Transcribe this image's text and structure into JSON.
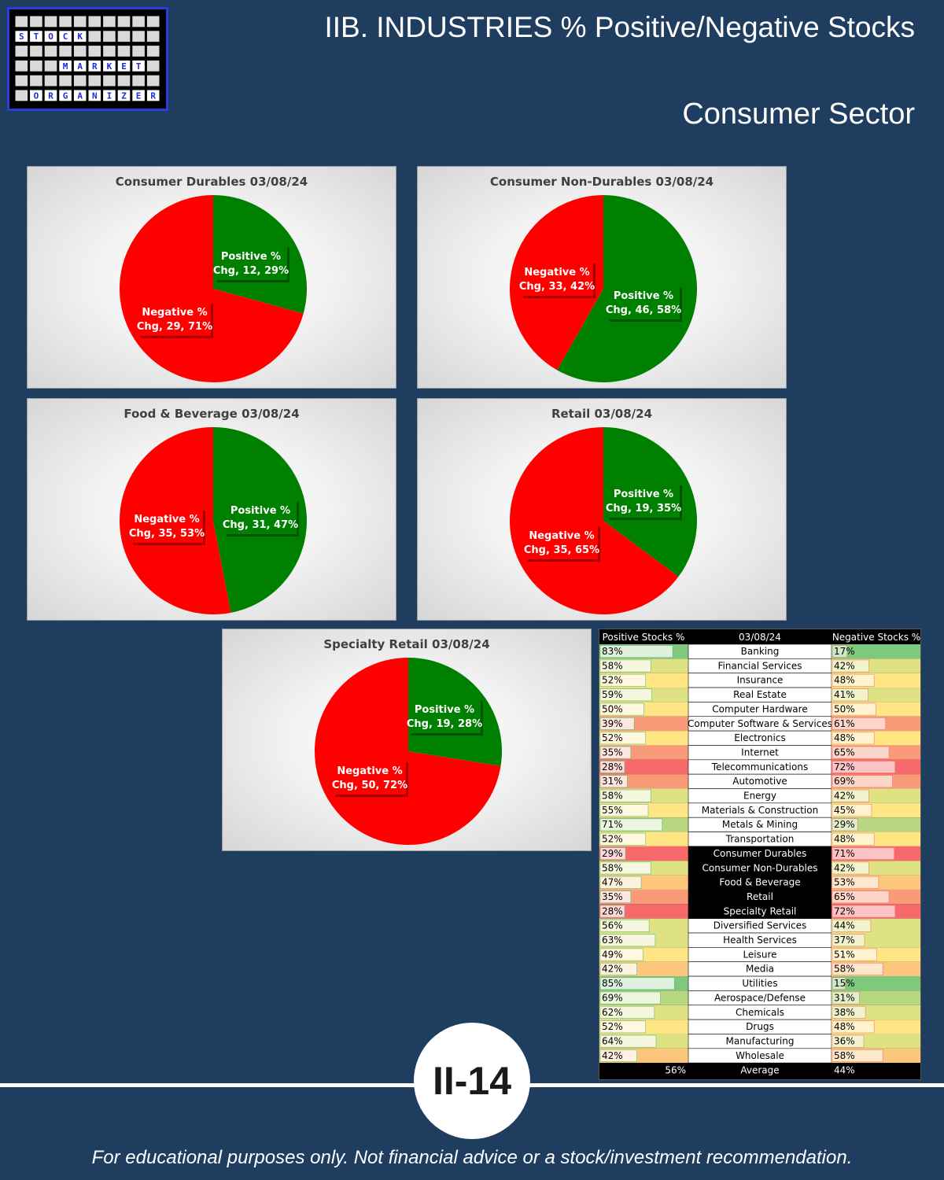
{
  "header": {
    "title": "IIB. INDUSTRIES % Positive/Negative Stocks",
    "subtitle": "Consumer Sector"
  },
  "logo": {
    "words": [
      "STOCK",
      "MARKET",
      "ORGANIZER"
    ]
  },
  "chart_data": [
    {
      "type": "pie",
      "title": "Consumer Durables 03/08/24",
      "slices": [
        {
          "name": "Positive % Chg",
          "value": 12,
          "percent": "29%",
          "color": "#008000"
        },
        {
          "name": "Negative % Chg",
          "value": 29,
          "percent": "71%",
          "color": "#ff0000"
        }
      ]
    },
    {
      "type": "pie",
      "title": "Consumer Non-Durables 03/08/24",
      "slices": [
        {
          "name": "Positive % Chg",
          "value": 46,
          "percent": "58%",
          "color": "#008000"
        },
        {
          "name": "Negative % Chg",
          "value": 33,
          "percent": "42%",
          "color": "#ff0000"
        }
      ]
    },
    {
      "type": "pie",
      "title": "Food & Beverage 03/08/24",
      "slices": [
        {
          "name": "Positive % Chg",
          "value": 31,
          "percent": "47%",
          "color": "#008000"
        },
        {
          "name": "Negative % Chg",
          "value": 35,
          "percent": "53%",
          "color": "#ff0000"
        }
      ]
    },
    {
      "type": "pie",
      "title": "Retail 03/08/24",
      "slices": [
        {
          "name": "Positive % Chg",
          "value": 19,
          "percent": "35%",
          "color": "#008000"
        },
        {
          "name": "Negative % Chg",
          "value": 35,
          "percent": "65%",
          "color": "#ff0000"
        }
      ]
    },
    {
      "type": "pie",
      "title": "Specialty Retail 03/08/24",
      "slices": [
        {
          "name": "Positive % Chg",
          "value": 19,
          "percent": "28%",
          "color": "#008000"
        },
        {
          "name": "Negative % Chg",
          "value": 50,
          "percent": "72%",
          "color": "#ff0000"
        }
      ]
    },
    {
      "type": "table",
      "columns": [
        "Positive Stocks %",
        "03/08/24",
        "Negative Stocks %"
      ],
      "highlighted": [
        "Consumer Durables",
        "Consumer Non-Durables",
        "Food & Beverage",
        "Retail",
        "Specialty Retail"
      ],
      "rows": [
        {
          "industry": "Banking",
          "pos": 83,
          "neg": 17
        },
        {
          "industry": "Financial Services",
          "pos": 58,
          "neg": 42
        },
        {
          "industry": "Insurance",
          "pos": 52,
          "neg": 48
        },
        {
          "industry": "Real Estate",
          "pos": 59,
          "neg": 41
        },
        {
          "industry": "Computer Hardware",
          "pos": 50,
          "neg": 50
        },
        {
          "industry": "Computer Software & Services",
          "pos": 39,
          "neg": 61
        },
        {
          "industry": "Electronics",
          "pos": 52,
          "neg": 48
        },
        {
          "industry": "Internet",
          "pos": 35,
          "neg": 65
        },
        {
          "industry": "Telecommunications",
          "pos": 28,
          "neg": 72
        },
        {
          "industry": "Automotive",
          "pos": 31,
          "neg": 69
        },
        {
          "industry": "Energy",
          "pos": 58,
          "neg": 42
        },
        {
          "industry": "Materials & Construction",
          "pos": 55,
          "neg": 45
        },
        {
          "industry": "Metals & Mining",
          "pos": 71,
          "neg": 29
        },
        {
          "industry": "Transportation",
          "pos": 52,
          "neg": 48
        },
        {
          "industry": "Consumer Durables",
          "pos": 29,
          "neg": 71
        },
        {
          "industry": "Consumer Non-Durables",
          "pos": 58,
          "neg": 42
        },
        {
          "industry": "Food & Beverage",
          "pos": 47,
          "neg": 53
        },
        {
          "industry": "Retail",
          "pos": 35,
          "neg": 65
        },
        {
          "industry": "Specialty Retail",
          "pos": 28,
          "neg": 72
        },
        {
          "industry": "Diversified Services",
          "pos": 56,
          "neg": 44
        },
        {
          "industry": "Health Services",
          "pos": 63,
          "neg": 37
        },
        {
          "industry": "Leisure",
          "pos": 49,
          "neg": 51
        },
        {
          "industry": "Media",
          "pos": 42,
          "neg": 58
        },
        {
          "industry": "Utilities",
          "pos": 85,
          "neg": 15
        },
        {
          "industry": "Aerospace/Defense",
          "pos": 69,
          "neg": 31
        },
        {
          "industry": "Chemicals",
          "pos": 62,
          "neg": 38
        },
        {
          "industry": "Drugs",
          "pos": 52,
          "neg": 48
        },
        {
          "industry": "Manufacturing",
          "pos": 64,
          "neg": 36
        },
        {
          "industry": "Wholesale",
          "pos": 42,
          "neg": 58
        }
      ],
      "average": {
        "label": "Average",
        "pos": "56%",
        "neg": "44%"
      }
    }
  ],
  "page_number": "II-14",
  "footer": "For educational purposes only. Not financial advice or a stock/investment recommendation."
}
